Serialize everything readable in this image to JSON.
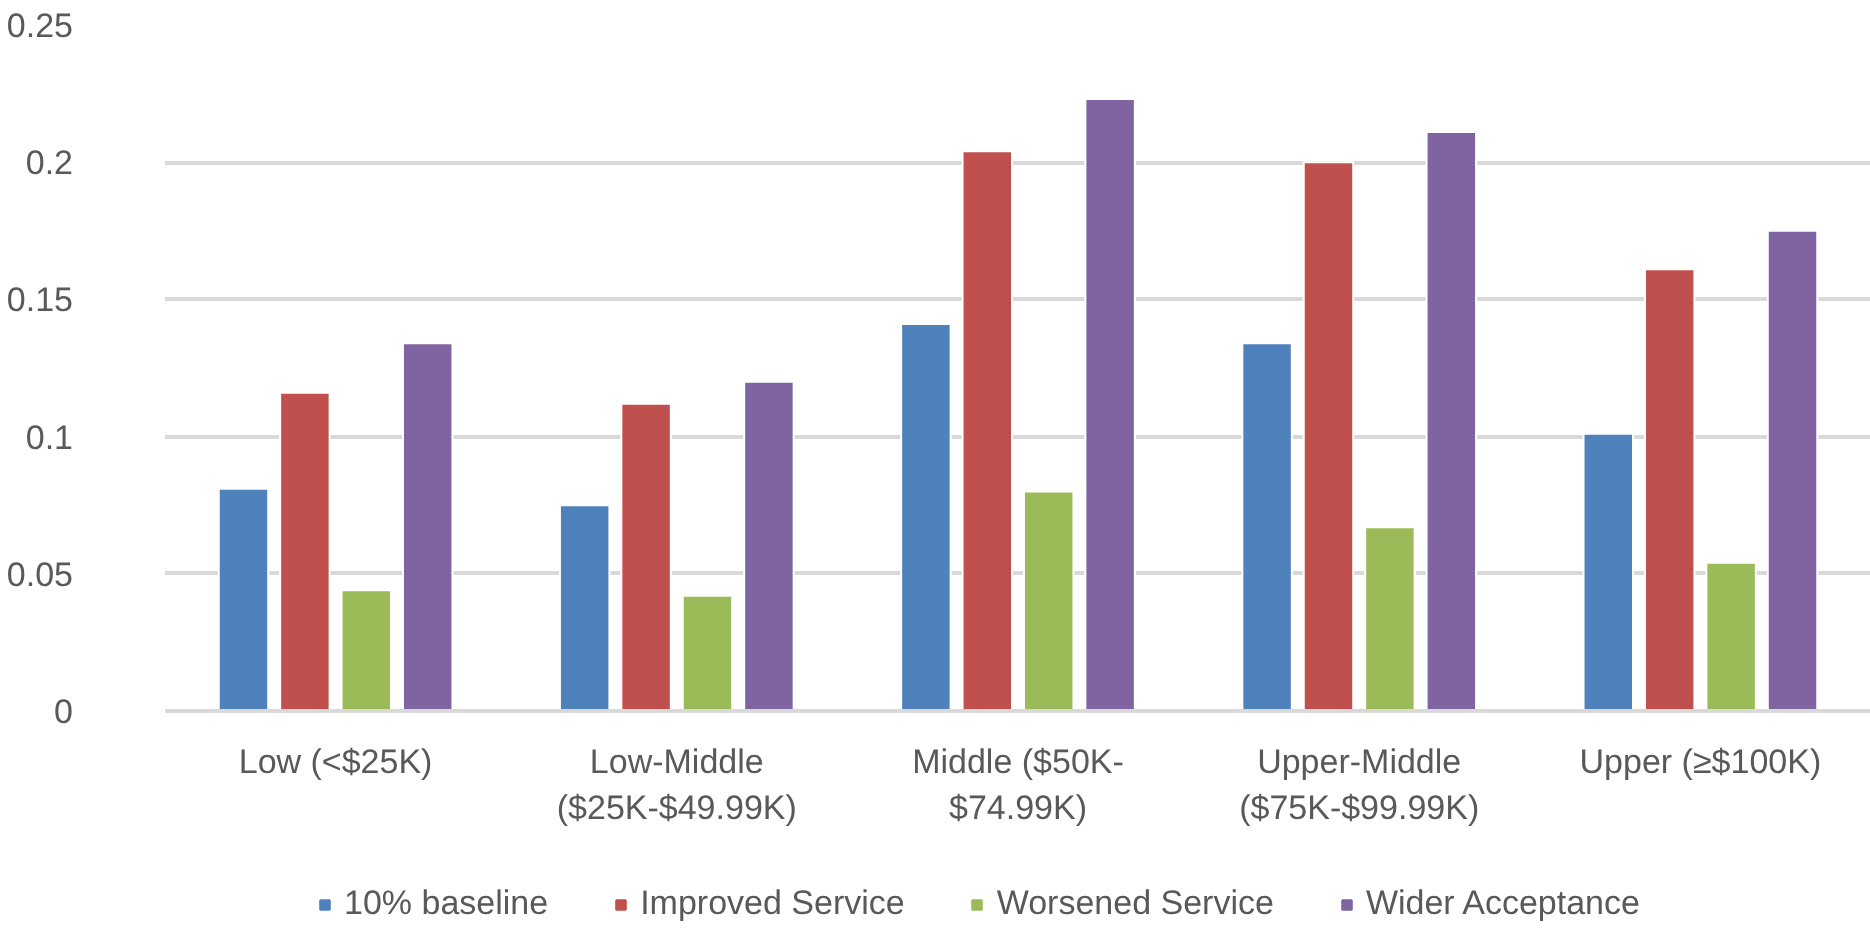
{
  "chart_data": {
    "type": "bar",
    "categories": [
      "Low (<$25K)",
      "Low-Middle ($25K-$49.99K)",
      "Middle ($50K-$74.99K)",
      "Upper-Middle ($75K-$99.99K)",
      "Upper (≥$100K)"
    ],
    "series": [
      {
        "name": "10% baseline",
        "color": "#4f81bd",
        "values": [
          0.081,
          0.075,
          0.141,
          0.134,
          0.101
        ]
      },
      {
        "name": "Improved Service",
        "color": "#c0504d",
        "values": [
          0.116,
          0.112,
          0.204,
          0.2,
          0.161
        ]
      },
      {
        "name": "Worsened Service",
        "color": "#9bbb59",
        "values": [
          0.044,
          0.042,
          0.08,
          0.067,
          0.054
        ]
      },
      {
        "name": "Wider Acceptance",
        "color": "#8064a2",
        "values": [
          0.134,
          0.12,
          0.223,
          0.211,
          0.175
        ]
      }
    ],
    "ylim": [
      0,
      0.25
    ],
    "yticks": [
      0,
      0.05,
      0.1,
      0.15,
      0.2,
      0.25
    ],
    "grid": "y",
    "legend": "bottom"
  }
}
